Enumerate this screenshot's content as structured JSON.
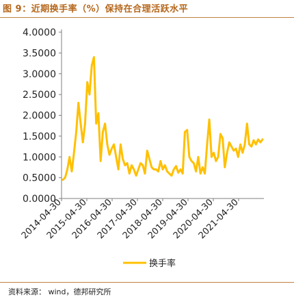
{
  "title": "图 9：近期换手率（%）保持在合理活跃水平",
  "source": "资料来源：  wind，德邦研究所",
  "colors": {
    "line": "#FFC000",
    "title": "#b5661a",
    "rule": "#c08040"
  },
  "chart_data": {
    "type": "line",
    "title": "图 9：近期换手率（%）保持在合理活跃水平",
    "xlabel": "",
    "ylabel": "",
    "ylim": [
      0,
      4
    ],
    "y_ticks": [
      "0.0000",
      "0.5000",
      "1.0000",
      "1.5000",
      "2.0000",
      "2.5000",
      "3.0000",
      "3.5000",
      "4.0000"
    ],
    "x_ticks": [
      "2014-04-30",
      "2015-04-30",
      "2016-04-30",
      "2017-04-30",
      "2018-04-30",
      "2019-04-30",
      "2020-04-30",
      "2021-04-30"
    ],
    "grid": false,
    "legend_position": "bottom",
    "series": [
      {
        "name": "换手率",
        "x": [
          "2014-04",
          "2014-05",
          "2014-06",
          "2014-07",
          "2014-08",
          "2014-09",
          "2014-10",
          "2014-11",
          "2014-12",
          "2015-01",
          "2015-02",
          "2015-03",
          "2015-04",
          "2015-05",
          "2015-06",
          "2015-07",
          "2015-08",
          "2015-09",
          "2015-10",
          "2015-11",
          "2015-12",
          "2016-01",
          "2016-02",
          "2016-03",
          "2016-04",
          "2016-05",
          "2016-06",
          "2016-07",
          "2016-08",
          "2016-09",
          "2016-10",
          "2016-11",
          "2016-12",
          "2017-01",
          "2017-02",
          "2017-03",
          "2017-04",
          "2017-05",
          "2017-06",
          "2017-07",
          "2017-08",
          "2017-09",
          "2017-10",
          "2017-11",
          "2017-12",
          "2018-01",
          "2018-02",
          "2018-03",
          "2018-04",
          "2018-05",
          "2018-06",
          "2018-07",
          "2018-08",
          "2018-09",
          "2018-10",
          "2018-11",
          "2018-12",
          "2019-01",
          "2019-02",
          "2019-03",
          "2019-04",
          "2019-05",
          "2019-06",
          "2019-07",
          "2019-08",
          "2019-09",
          "2019-10",
          "2019-11",
          "2019-12",
          "2020-01",
          "2020-02",
          "2020-03",
          "2020-04",
          "2020-05",
          "2020-06",
          "2020-07",
          "2020-08",
          "2020-09",
          "2020-10",
          "2020-11",
          "2020-12",
          "2021-01",
          "2021-02",
          "2021-03",
          "2021-04",
          "2021-05",
          "2021-06",
          "2021-07",
          "2021-08",
          "2021-09",
          "2021-10"
        ],
        "values": [
          0.45,
          0.5,
          0.7,
          1.0,
          0.65,
          1.1,
          1.6,
          2.3,
          1.8,
          1.35,
          1.8,
          2.8,
          2.5,
          3.2,
          3.4,
          1.8,
          2.05,
          0.9,
          1.6,
          1.8,
          1.3,
          1.05,
          1.2,
          1.3,
          1.0,
          0.7,
          1.3,
          0.95,
          0.8,
          0.85,
          0.6,
          0.8,
          0.7,
          0.55,
          0.7,
          0.85,
          0.8,
          0.6,
          1.15,
          0.95,
          0.75,
          0.7,
          0.7,
          0.65,
          0.9,
          0.7,
          0.8,
          0.65,
          0.6,
          0.55,
          0.7,
          0.78,
          0.62,
          0.7,
          0.6,
          1.6,
          1.65,
          1.0,
          0.9,
          0.85,
          0.65,
          1.0,
          0.6,
          0.75,
          0.6,
          1.3,
          1.9,
          1.0,
          1.1,
          0.9,
          1.0,
          1.55,
          1.45,
          0.75,
          1.1,
          1.35,
          1.25,
          1.15,
          1.2,
          1.0,
          1.3,
          1.1,
          1.3,
          1.8,
          1.3,
          1.25,
          1.4,
          1.3,
          1.42,
          1.35,
          1.42
        ]
      }
    ]
  }
}
